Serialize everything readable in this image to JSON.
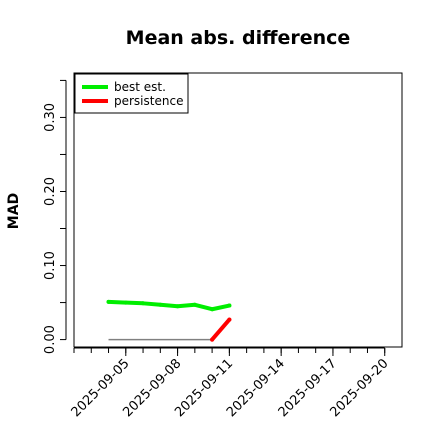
{
  "chart_data": {
    "type": "line",
    "title": "Mean abs. difference",
    "xlabel": "",
    "ylabel": "MAD",
    "xlim": [
      "2025-09-02",
      "2025-09-21"
    ],
    "ylim": [
      -0.01,
      0.36
    ],
    "x_ticks": [
      "2025-09-05",
      "2025-09-08",
      "2025-09-11",
      "2025-09-14",
      "2025-09-17",
      "2025-09-20"
    ],
    "y_ticks": [
      "0.00",
      "0.10",
      "0.20",
      "0.30"
    ],
    "y_tick_values": [
      0.0,
      0.1,
      0.2,
      0.3
    ],
    "y_minor_ticks": [
      0.05,
      0.15,
      0.25,
      0.35
    ],
    "legend": {
      "placement": "top-left"
    },
    "series": [
      {
        "name": "best est.",
        "color": "#00ee00",
        "x": [
          "2025-09-04",
          "2025-09-05",
          "2025-09-06",
          "2025-09-07",
          "2025-09-08",
          "2025-09-09",
          "2025-09-10",
          "2025-09-11"
        ],
        "y": [
          0.051,
          0.05,
          0.049,
          0.047,
          0.045,
          0.047,
          0.041,
          0.046
        ]
      },
      {
        "name": "persistence",
        "color": "#ff0000",
        "x": [
          "2025-09-10",
          "2025-09-11"
        ],
        "y": [
          0.0,
          0.027
        ]
      }
    ],
    "reference_line": {
      "color": "#808080",
      "x": [
        "2025-09-04",
        "2025-09-10"
      ],
      "y": [
        0.0,
        0.0
      ]
    }
  }
}
